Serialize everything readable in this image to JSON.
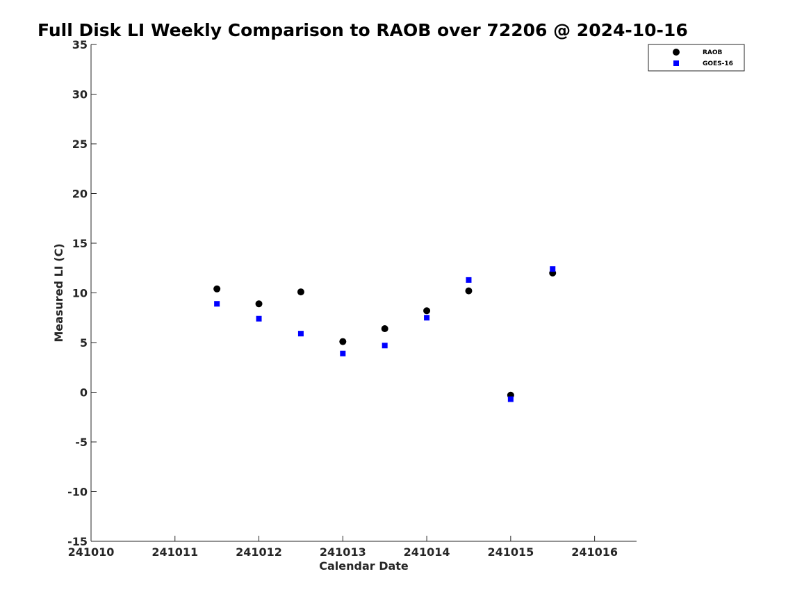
{
  "chart_data": {
    "type": "scatter",
    "title": "Full Disk LI Weekly Comparison to RAOB over 72206 @ 2024-10-16",
    "xlabel": "Calendar Date",
    "ylabel": "Measured LI (C)",
    "xlim": [
      241010,
      241016.5
    ],
    "ylim": [
      -15,
      35
    ],
    "xticks": [
      241010,
      241011,
      241012,
      241013,
      241014,
      241015,
      241016
    ],
    "xtick_labels": [
      "241010",
      "241011",
      "241012",
      "241013",
      "241014",
      "241015",
      "241016"
    ],
    "yticks": [
      -15,
      -10,
      -5,
      0,
      5,
      10,
      15,
      20,
      25,
      30,
      35
    ],
    "ytick_labels": [
      "-15",
      "-10",
      "-5",
      "0",
      "5",
      "10",
      "15",
      "20",
      "25",
      "30",
      "35"
    ],
    "grid": false,
    "legend_position": "top-right",
    "series": [
      {
        "name": "RAOB",
        "marker": "circle",
        "color": "#000000",
        "x": [
          241011.5,
          241012.0,
          241012.5,
          241013.0,
          241013.5,
          241014.0,
          241014.5,
          241015.0,
          241015.5
        ],
        "y": [
          10.4,
          8.9,
          10.1,
          5.1,
          6.4,
          8.2,
          10.2,
          -0.3,
          12.0
        ]
      },
      {
        "name": "GOES-16",
        "marker": "square",
        "color": "#0000ff",
        "x": [
          241011.5,
          241012.0,
          241012.5,
          241013.0,
          241013.5,
          241014.0,
          241014.5,
          241015.0,
          241015.5
        ],
        "y": [
          8.9,
          7.4,
          5.9,
          3.9,
          4.7,
          7.5,
          11.3,
          -0.7,
          12.4
        ]
      }
    ]
  }
}
